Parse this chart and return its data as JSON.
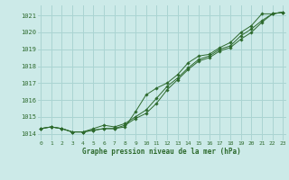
{
  "xlabel": "Graphe pression niveau de la mer (hPa)",
  "x_ticks": [
    0,
    1,
    2,
    3,
    4,
    5,
    6,
    7,
    8,
    9,
    10,
    11,
    12,
    13,
    14,
    15,
    16,
    17,
    18,
    19,
    20,
    21,
    22,
    23
  ],
  "y_ticks": [
    1014,
    1015,
    1016,
    1017,
    1018,
    1019,
    1020,
    1021
  ],
  "ylim": [
    1013.6,
    1021.6
  ],
  "xlim": [
    -0.3,
    23.3
  ],
  "background_color": "#cceae8",
  "grid_color": "#aad4d2",
  "line_color": "#2d6a2d",
  "line1": [
    1014.3,
    1014.4,
    1014.3,
    1014.1,
    1014.1,
    1014.2,
    1014.3,
    1014.3,
    1014.4,
    1015.3,
    1016.3,
    1016.7,
    1017.0,
    1017.5,
    1018.2,
    1018.6,
    1018.7,
    1019.1,
    1019.4,
    1020.0,
    1020.4,
    1021.1,
    1021.1,
    1021.2
  ],
  "line2": [
    1014.3,
    1014.4,
    1014.3,
    1014.1,
    1014.1,
    1014.2,
    1014.3,
    1014.3,
    1014.5,
    1014.9,
    1015.2,
    1015.8,
    1016.6,
    1017.2,
    1017.8,
    1018.3,
    1018.5,
    1018.9,
    1019.1,
    1019.6,
    1020.0,
    1020.6,
    1021.1,
    1021.2
  ],
  "line3": [
    1014.3,
    1014.4,
    1014.3,
    1014.1,
    1014.1,
    1014.3,
    1014.5,
    1014.4,
    1014.6,
    1015.0,
    1015.4,
    1016.1,
    1016.8,
    1017.3,
    1017.9,
    1018.4,
    1018.6,
    1019.0,
    1019.2,
    1019.8,
    1020.2,
    1020.7,
    1021.1,
    1021.2
  ]
}
